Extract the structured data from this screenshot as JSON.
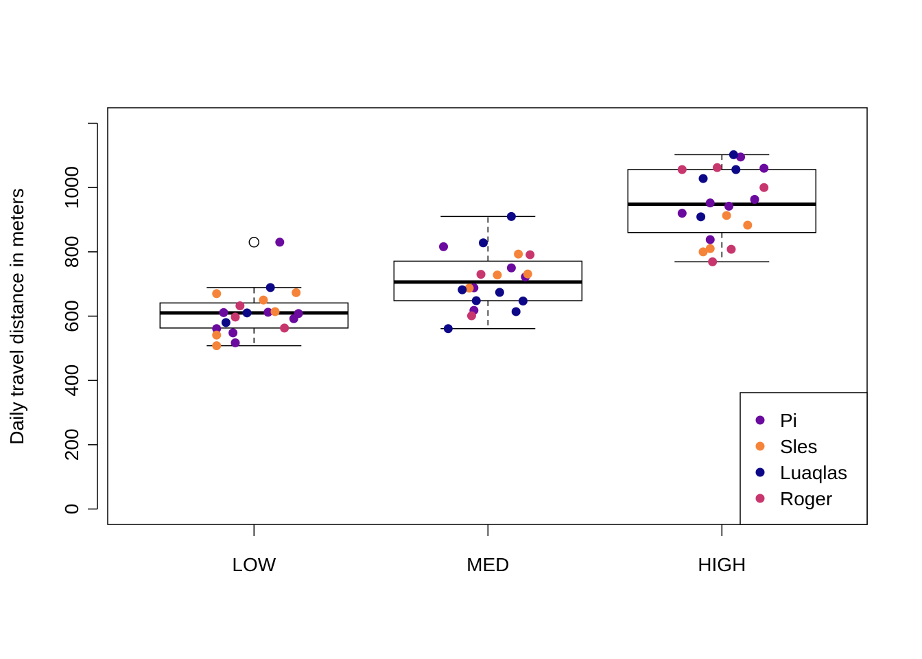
{
  "chart_data": {
    "type": "boxplot",
    "title": "",
    "xlabel": "",
    "ylabel": "Daily travel distance in meters",
    "categories": [
      "LOW",
      "MED",
      "HIGH"
    ],
    "ylim": [
      -50,
      1250
    ],
    "yticks": [
      0,
      200,
      400,
      600,
      800,
      1000
    ],
    "grid": false,
    "legend_position": "bottom-right",
    "boxes": [
      {
        "category": "LOW",
        "whisker_low": 508,
        "q1": 563,
        "median": 610,
        "q3": 641,
        "whisker_high": 689,
        "outliers": [
          830
        ]
      },
      {
        "category": "MED",
        "whisker_low": 561,
        "q1": 648,
        "median": 706,
        "q3": 771,
        "whisker_high": 910,
        "outliers": []
      },
      {
        "category": "HIGH",
        "whisker_low": 769,
        "q1": 860,
        "median": 948,
        "q3": 1056,
        "whisker_high": 1102,
        "outliers": []
      }
    ],
    "series": [
      {
        "name": "Pi",
        "color": "#6a0a9e",
        "points": [
          {
            "x": "LOW",
            "jitter": 0.11,
            "y": 830
          },
          {
            "x": "LOW",
            "jitter": -0.13,
            "y": 611
          },
          {
            "x": "LOW",
            "jitter": -0.16,
            "y": 561
          },
          {
            "x": "LOW",
            "jitter": -0.09,
            "y": 548
          },
          {
            "x": "LOW",
            "jitter": -0.08,
            "y": 517
          },
          {
            "x": "LOW",
            "jitter": 0.06,
            "y": 612
          },
          {
            "x": "LOW",
            "jitter": 0.17,
            "y": 592
          },
          {
            "x": "LOW",
            "jitter": 0.19,
            "y": 608
          },
          {
            "x": "MED",
            "jitter": -0.19,
            "y": 816
          },
          {
            "x": "MED",
            "jitter": 0.1,
            "y": 750
          },
          {
            "x": "MED",
            "jitter": 0.16,
            "y": 722
          },
          {
            "x": "MED",
            "jitter": -0.06,
            "y": 688
          },
          {
            "x": "MED",
            "jitter": -0.06,
            "y": 618
          },
          {
            "x": "HIGH",
            "jitter": 0.08,
            "y": 1095
          },
          {
            "x": "HIGH",
            "jitter": 0.18,
            "y": 1060
          },
          {
            "x": "HIGH",
            "jitter": 0.14,
            "y": 963
          },
          {
            "x": "HIGH",
            "jitter": -0.05,
            "y": 952
          },
          {
            "x": "HIGH",
            "jitter": 0.03,
            "y": 942
          },
          {
            "x": "HIGH",
            "jitter": -0.17,
            "y": 920
          },
          {
            "x": "HIGH",
            "jitter": -0.05,
            "y": 838
          }
        ]
      },
      {
        "name": "Sles",
        "color": "#f5843a",
        "points": [
          {
            "x": "LOW",
            "jitter": -0.16,
            "y": 670
          },
          {
            "x": "LOW",
            "jitter": 0.18,
            "y": 673
          },
          {
            "x": "LOW",
            "jitter": 0.04,
            "y": 650
          },
          {
            "x": "LOW",
            "jitter": 0.09,
            "y": 614
          },
          {
            "x": "LOW",
            "jitter": -0.16,
            "y": 541
          },
          {
            "x": "LOW",
            "jitter": -0.16,
            "y": 508
          },
          {
            "x": "MED",
            "jitter": 0.13,
            "y": 793
          },
          {
            "x": "MED",
            "jitter": 0.17,
            "y": 731
          },
          {
            "x": "MED",
            "jitter": 0.04,
            "y": 728
          },
          {
            "x": "MED",
            "jitter": -0.08,
            "y": 687
          },
          {
            "x": "HIGH",
            "jitter": 0.02,
            "y": 913
          },
          {
            "x": "HIGH",
            "jitter": 0.11,
            "y": 883
          },
          {
            "x": "HIGH",
            "jitter": -0.05,
            "y": 810
          },
          {
            "x": "HIGH",
            "jitter": -0.08,
            "y": 800
          }
        ]
      },
      {
        "name": "Luaqlas",
        "color": "#0d0887",
        "points": [
          {
            "x": "LOW",
            "jitter": 0.07,
            "y": 689
          },
          {
            "x": "LOW",
            "jitter": -0.03,
            "y": 610
          },
          {
            "x": "LOW",
            "jitter": -0.12,
            "y": 580
          },
          {
            "x": "MED",
            "jitter": 0.1,
            "y": 910
          },
          {
            "x": "MED",
            "jitter": -0.02,
            "y": 828
          },
          {
            "x": "MED",
            "jitter": -0.11,
            "y": 682
          },
          {
            "x": "MED",
            "jitter": 0.05,
            "y": 674
          },
          {
            "x": "MED",
            "jitter": -0.05,
            "y": 648
          },
          {
            "x": "MED",
            "jitter": 0.15,
            "y": 647
          },
          {
            "x": "MED",
            "jitter": 0.12,
            "y": 614
          },
          {
            "x": "MED",
            "jitter": -0.17,
            "y": 561
          },
          {
            "x": "HIGH",
            "jitter": 0.05,
            "y": 1102
          },
          {
            "x": "HIGH",
            "jitter": 0.06,
            "y": 1056
          },
          {
            "x": "HIGH",
            "jitter": -0.08,
            "y": 1028
          },
          {
            "x": "HIGH",
            "jitter": -0.09,
            "y": 909
          }
        ]
      },
      {
        "name": "Roger",
        "color": "#c8366e",
        "points": [
          {
            "x": "LOW",
            "jitter": -0.06,
            "y": 632
          },
          {
            "x": "LOW",
            "jitter": -0.08,
            "y": 597
          },
          {
            "x": "LOW",
            "jitter": 0.13,
            "y": 563
          },
          {
            "x": "MED",
            "jitter": 0.18,
            "y": 791
          },
          {
            "x": "MED",
            "jitter": -0.03,
            "y": 730
          },
          {
            "x": "MED",
            "jitter": -0.07,
            "y": 601
          },
          {
            "x": "HIGH",
            "jitter": -0.17,
            "y": 1056
          },
          {
            "x": "HIGH",
            "jitter": -0.02,
            "y": 1062
          },
          {
            "x": "HIGH",
            "jitter": 0.18,
            "y": 1000
          },
          {
            "x": "HIGH",
            "jitter": 0.04,
            "y": 808
          },
          {
            "x": "HIGH",
            "jitter": -0.04,
            "y": 769
          }
        ]
      }
    ]
  }
}
